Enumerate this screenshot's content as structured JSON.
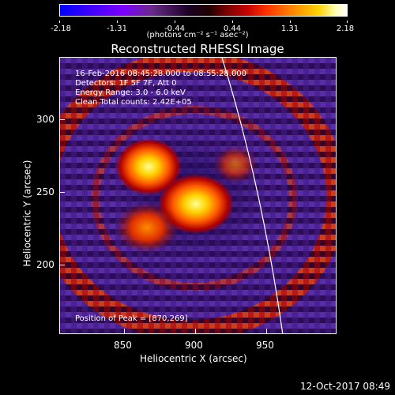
{
  "colorbar": {
    "labels": [
      "-2.18",
      "-1.31",
      "-0.44",
      "0.44",
      "1.31",
      "2.18"
    ],
    "units": "(photons cm⁻² s⁻¹ asec⁻²)"
  },
  "title": "Reconstructed RHESSI Image",
  "annotations": {
    "time": "16-Feb-2016 08:45:28.000 to 08:55:28.000",
    "detectors": "Detectors: 1F 5F 7F, Att 0",
    "energy": "Energy Range: 3.0 - 6.0 keV",
    "method": "Clean     Total counts: 2.42E+05",
    "peak": "Position of Peak = [870,269]"
  },
  "x_axis": {
    "title": "Heliocentric X (arcsec)",
    "ticks": [
      "850",
      "900",
      "950"
    ]
  },
  "y_axis": {
    "title": "Heliocentric Y (arcsec)",
    "ticks": [
      "300",
      "250",
      "200"
    ]
  },
  "footer": {
    "date": "12-Oct-2017 08:49"
  }
}
